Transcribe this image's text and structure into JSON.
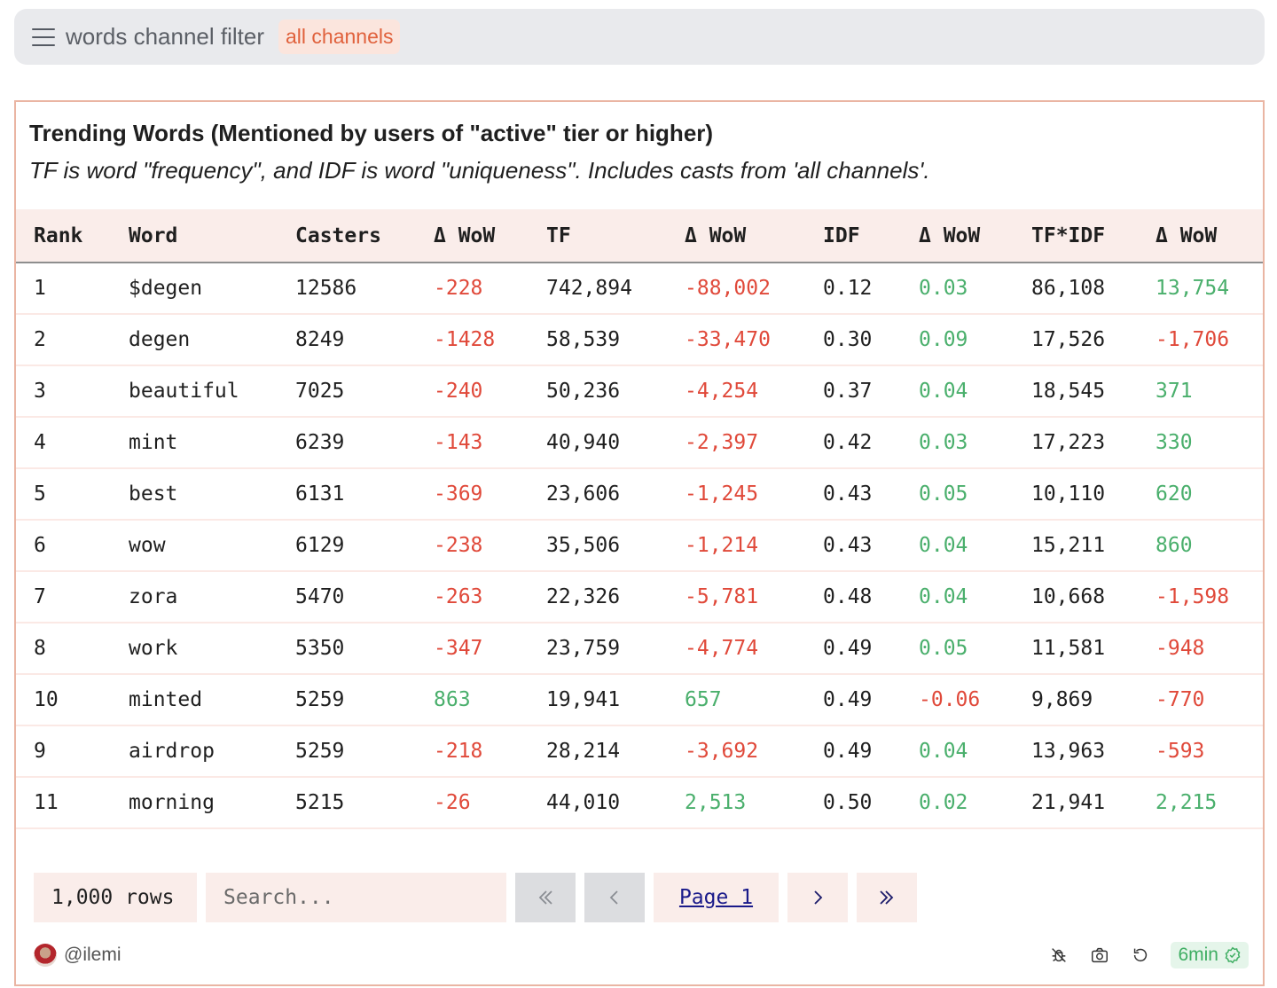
{
  "filter": {
    "label": "words channel filter",
    "value": "all channels"
  },
  "card": {
    "title": "Trending Words (Mentioned by users of \"active\" tier or higher)",
    "subtitle": "TF is word \"frequency\", and IDF is word \"uniqueness\". Includes casts from 'all channels'."
  },
  "table": {
    "columns": [
      "Rank",
      "Word",
      "Casters",
      "Δ WoW",
      "TF",
      "Δ WoW",
      "IDF",
      "Δ WoW",
      "TF*IDF",
      "Δ WoW"
    ],
    "rows": [
      [
        "1",
        "$degen",
        "12586",
        "-228",
        "742,894",
        "-88,002",
        "0.12",
        "0.03",
        "86,108",
        "13,754"
      ],
      [
        "2",
        "degen",
        "8249",
        "-1428",
        "58,539",
        "-33,470",
        "0.30",
        "0.09",
        "17,526",
        "-1,706"
      ],
      [
        "3",
        "beautiful",
        "7025",
        "-240",
        "50,236",
        "-4,254",
        "0.37",
        "0.04",
        "18,545",
        "371"
      ],
      [
        "4",
        "mint",
        "6239",
        "-143",
        "40,940",
        "-2,397",
        "0.42",
        "0.03",
        "17,223",
        "330"
      ],
      [
        "5",
        "best",
        "6131",
        "-369",
        "23,606",
        "-1,245",
        "0.43",
        "0.05",
        "10,110",
        "620"
      ],
      [
        "6",
        "wow",
        "6129",
        "-238",
        "35,506",
        "-1,214",
        "0.43",
        "0.04",
        "15,211",
        "860"
      ],
      [
        "7",
        "zora",
        "5470",
        "-263",
        "22,326",
        "-5,781",
        "0.48",
        "0.04",
        "10,668",
        "-1,598"
      ],
      [
        "8",
        "work",
        "5350",
        "-347",
        "23,759",
        "-4,774",
        "0.49",
        "0.05",
        "11,581",
        "-948"
      ],
      [
        "10",
        "minted",
        "5259",
        "863",
        "19,941",
        "657",
        "0.49",
        "-0.06",
        "9,869",
        "-770"
      ],
      [
        "9",
        "airdrop",
        "5259",
        "-218",
        "28,214",
        "-3,692",
        "0.49",
        "0.04",
        "13,963",
        "-593"
      ],
      [
        "11",
        "morning",
        "5215",
        "-26",
        "44,010",
        "2,513",
        "0.50",
        "0.02",
        "21,941",
        "2,215"
      ]
    ]
  },
  "pagination": {
    "row_count": "1,000 rows",
    "search_placeholder": "Search...",
    "page_label": "Page 1"
  },
  "footer": {
    "author": "@ilemi",
    "age": "6min"
  },
  "colors": {
    "positive": "#4aaf6c",
    "negative": "#e0493a",
    "accent": "#e0613c"
  }
}
